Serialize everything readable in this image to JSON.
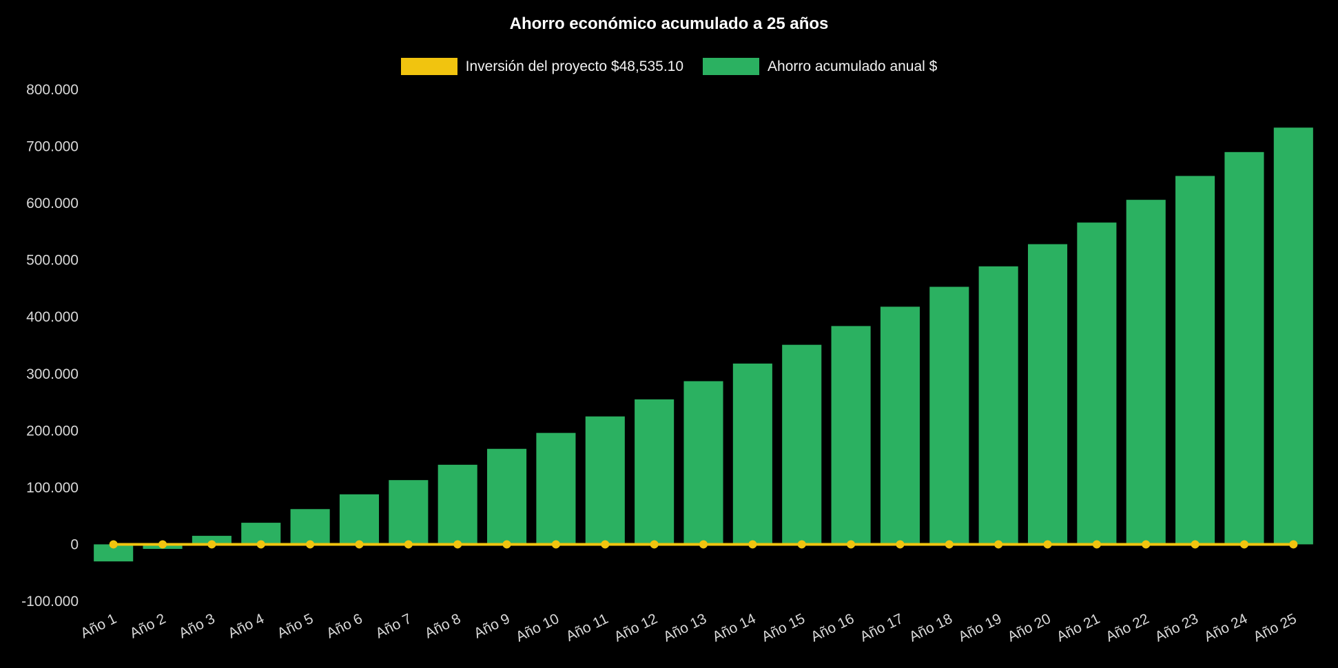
{
  "chart_data": {
    "type": "bar",
    "title": "Ahorro económico acumulado a 25 años",
    "background": "#000000",
    "title_color": "#ffffff",
    "tick_color": "#d9d9d9",
    "grid": false,
    "legend_position": "top",
    "x_tick_rotation_deg": -26,
    "ylim": [
      -100000,
      800000
    ],
    "y_ticks": [
      {
        "value": 800000,
        "label": "800.000"
      },
      {
        "value": 700000,
        "label": "700.000"
      },
      {
        "value": 600000,
        "label": "600.000"
      },
      {
        "value": 500000,
        "label": "500.000"
      },
      {
        "value": 400000,
        "label": "400.000"
      },
      {
        "value": 300000,
        "label": "300.000"
      },
      {
        "value": 200000,
        "label": "200.000"
      },
      {
        "value": 100000,
        "label": "100.000"
      },
      {
        "value": 0,
        "label": "0"
      },
      {
        "value": -100000,
        "label": "-100.000"
      }
    ],
    "categories": [
      "Año 1",
      "Año 2",
      "Año 3",
      "Año 4",
      "Año 5",
      "Año 6",
      "Año 7",
      "Año 8",
      "Año 9",
      "Año 10",
      "Año 11",
      "Año 12",
      "Año 13",
      "Año 14",
      "Año 15",
      "Año 16",
      "Año 17",
      "Año 18",
      "Año 19",
      "Año 20",
      "Año 21",
      "Año 22",
      "Año 23",
      "Año 24",
      "Año 25"
    ],
    "series": [
      {
        "name": "Inversión del proyecto $48,535.10",
        "type": "line",
        "color": "#f1c40f",
        "values": [
          0,
          0,
          0,
          0,
          0,
          0,
          0,
          0,
          0,
          0,
          0,
          0,
          0,
          0,
          0,
          0,
          0,
          0,
          0,
          0,
          0,
          0,
          0,
          0,
          0
        ]
      },
      {
        "name": "Ahorro acumulado anual $",
        "type": "bar",
        "color": "#2bb161",
        "values": [
          -30000,
          -8000,
          15000,
          38000,
          62000,
          88000,
          113000,
          140000,
          168000,
          196000,
          225000,
          255000,
          287000,
          318000,
          351000,
          384000,
          418000,
          453000,
          489000,
          528000,
          566000,
          606000,
          648000,
          690000,
          733000
        ]
      }
    ]
  }
}
